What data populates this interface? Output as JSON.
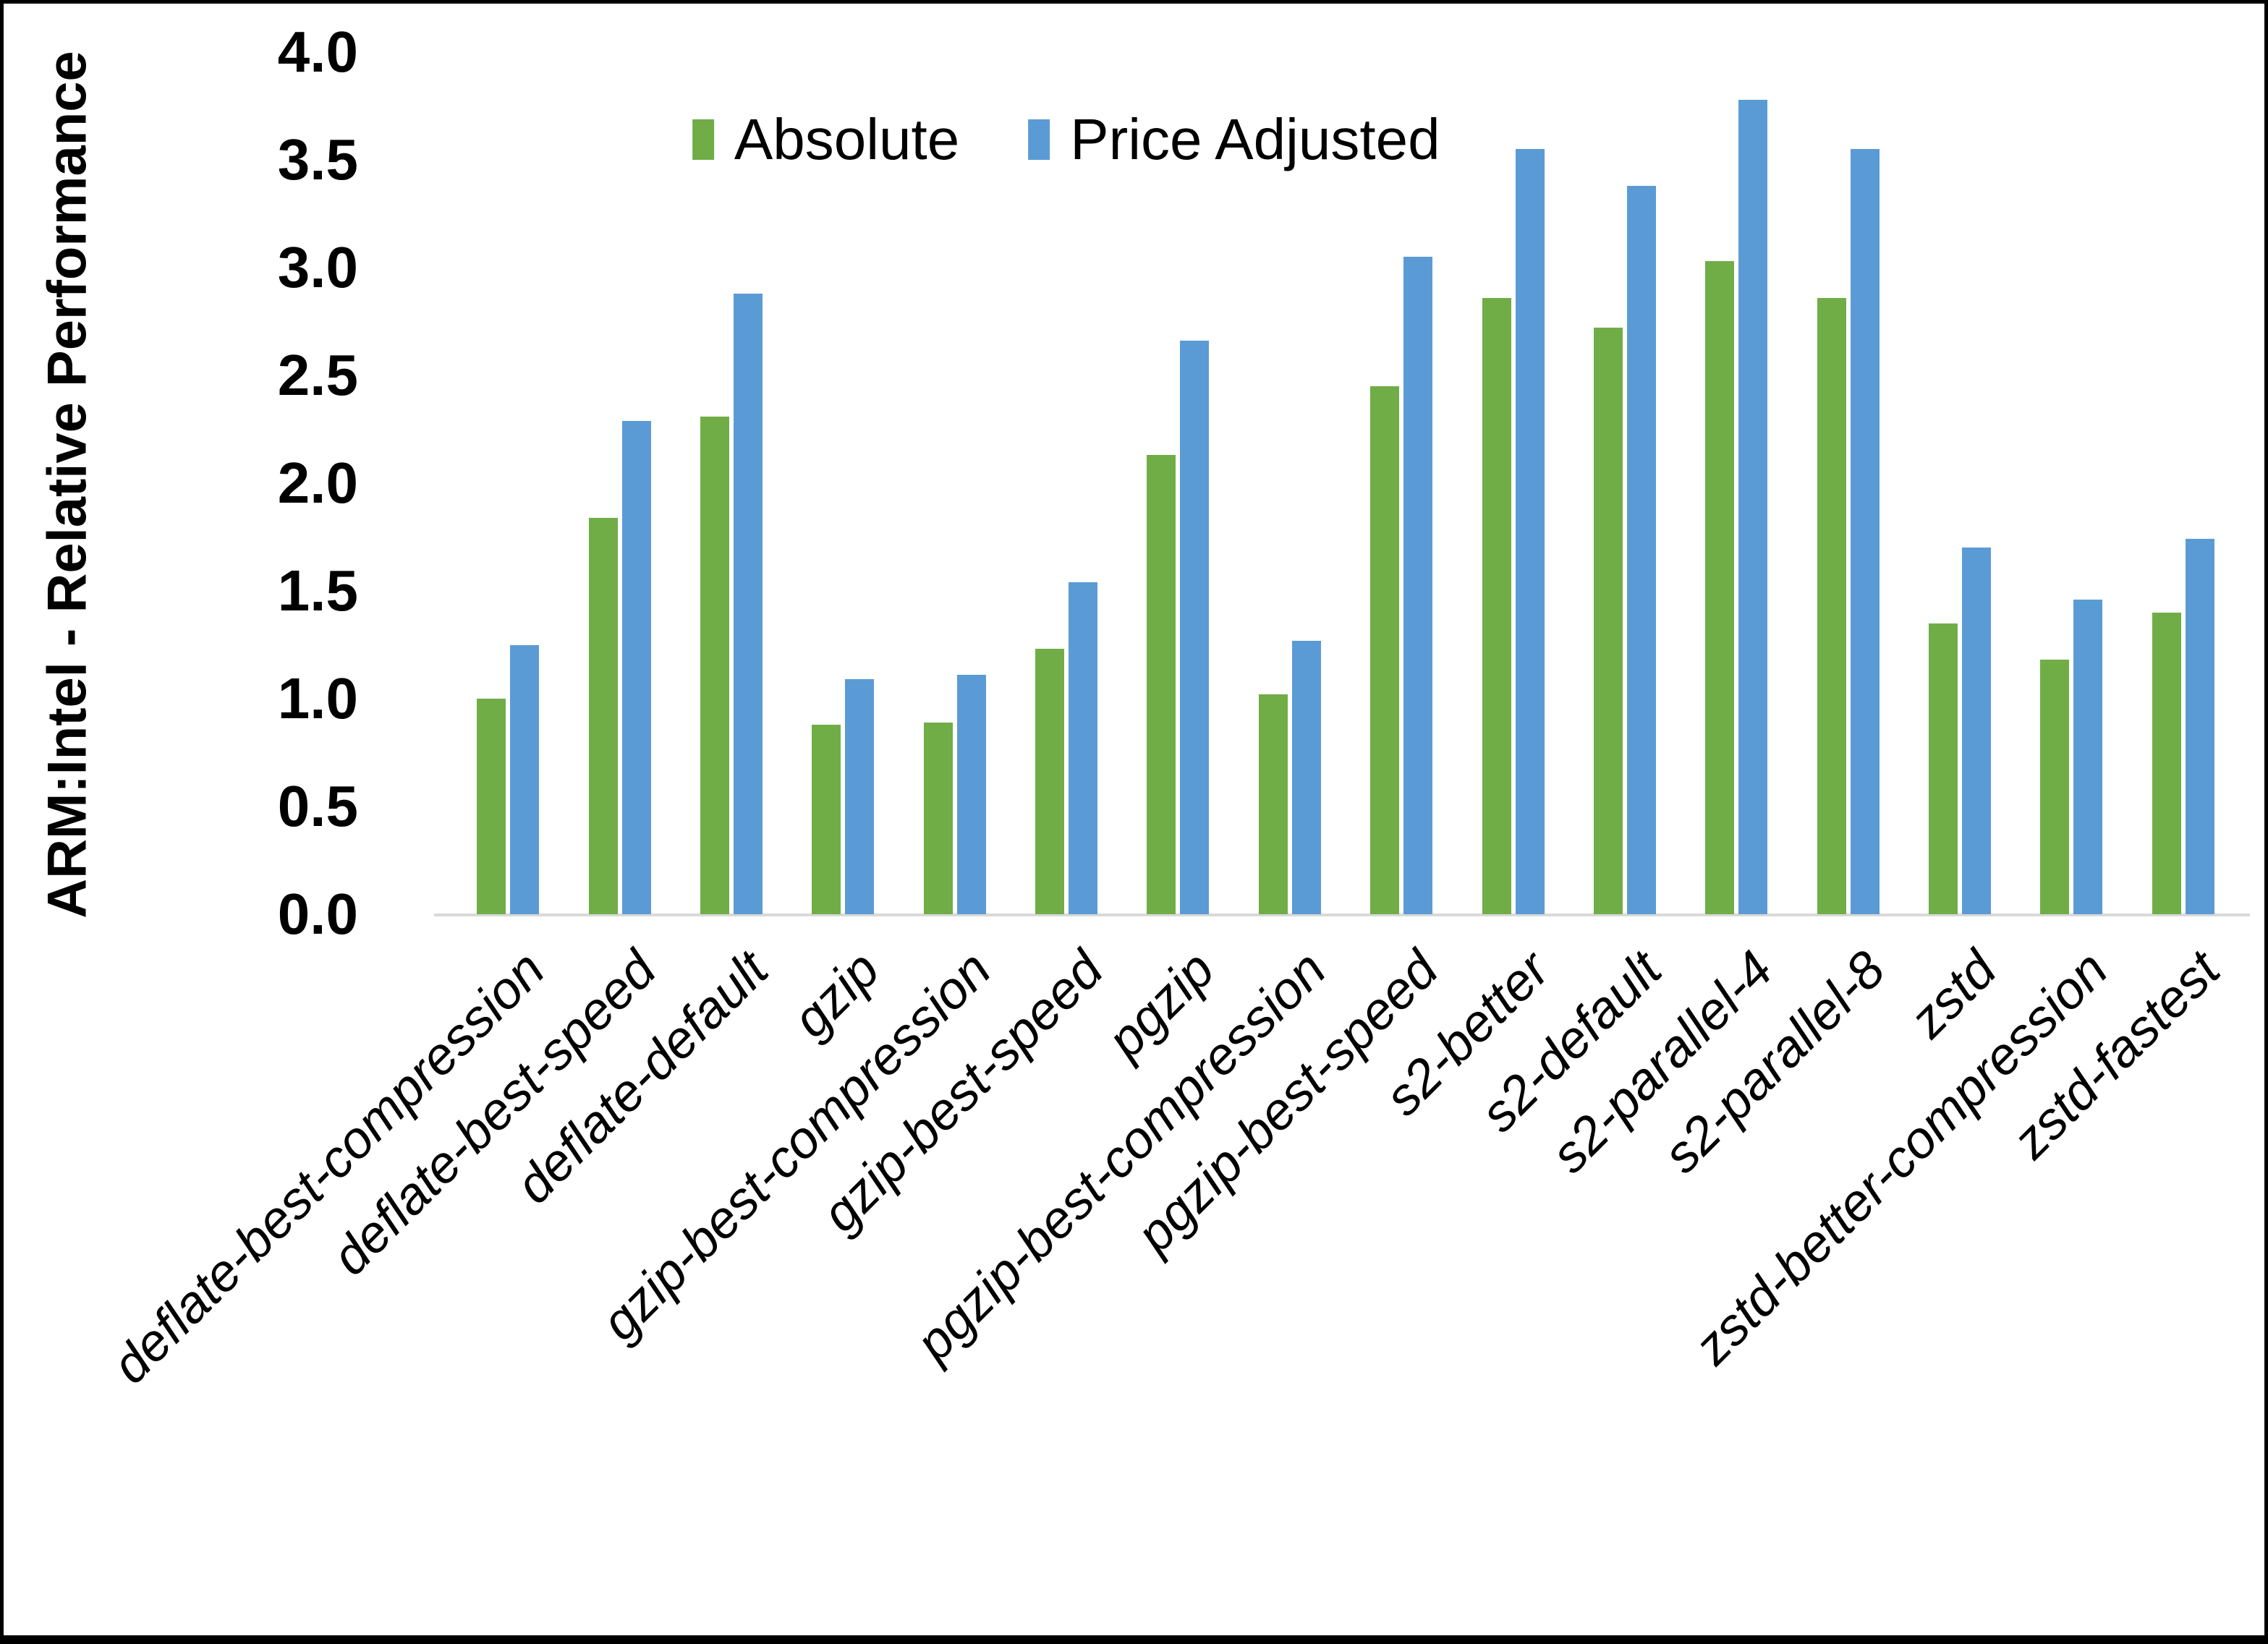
{
  "figure": {
    "background": "#ffffff",
    "border_color": "#000000"
  },
  "y_axis": {
    "title": "ARM:Intel - Relative Performance",
    "ticks": [
      "4.0",
      "3.5",
      "3.0",
      "2.5",
      "2.0",
      "1.5",
      "1.0",
      "0.5",
      "0.0"
    ],
    "min": 0.0,
    "max": 4.0
  },
  "legend": {
    "items": [
      {
        "label": "Absolute",
        "color": "#70AD47"
      },
      {
        "label": "Price Adjusted",
        "color": "#5B9BD5"
      }
    ]
  },
  "chart_data": {
    "type": "bar",
    "title": "",
    "xlabel": "",
    "ylabel": "ARM:Intel - Relative Performance",
    "ylim": [
      0.0,
      4.0
    ],
    "ytick_step": 0.5,
    "grid": false,
    "legend_position": "top-center",
    "axis_line_color": "#d9d9d9",
    "categories": [
      "deflate-best-compression",
      "deflate-best-speed",
      "deflate-default",
      "gzip",
      "gzip-best-compression",
      "gzip-best-speed",
      "pgzip",
      "pgzip-best-compression",
      "pgzip-best-speed",
      "s2-better",
      "s2-default",
      "s2-parallel-4",
      "s2-parallel-8",
      "zstd",
      "zstd-better-compression",
      "zstd-fastest"
    ],
    "series": [
      {
        "name": "Absolute",
        "color": "#70AD47",
        "values": [
          1.0,
          1.84,
          2.31,
          0.88,
          0.89,
          1.23,
          2.13,
          1.02,
          2.45,
          2.86,
          2.72,
          3.03,
          2.86,
          1.35,
          1.18,
          1.4
        ]
      },
      {
        "name": "Price Adjusted",
        "color": "#5B9BD5",
        "values": [
          1.25,
          2.29,
          2.88,
          1.09,
          1.11,
          1.54,
          2.66,
          1.27,
          3.05,
          3.55,
          3.38,
          3.78,
          3.55,
          1.7,
          1.46,
          1.74
        ]
      }
    ]
  }
}
